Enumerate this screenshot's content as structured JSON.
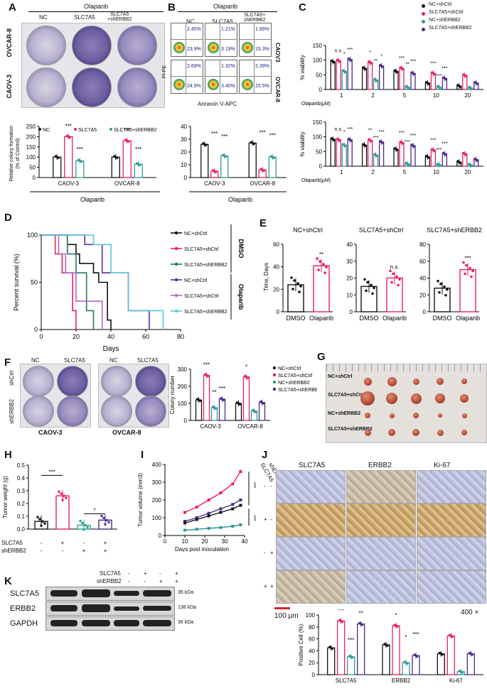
{
  "panels": {
    "A": "A",
    "B": "B",
    "C": "C",
    "D": "D",
    "E": "E",
    "F": "F",
    "G": "G",
    "H": "H",
    "I": "I",
    "J": "J",
    "K": "K"
  },
  "panelA": {
    "drug": "Olaparib",
    "cols": [
      "NC",
      "SLC7A5",
      "SLC7A5\n+shERBB2"
    ],
    "rows": [
      "OVCAR-8",
      "CAOV-3"
    ],
    "chart_data": {
      "type": "bar",
      "title": "",
      "ylabel": "Relative colony formation\n(% of Control)",
      "ylim": [
        0,
        250
      ],
      "yticks": [
        "0",
        "50",
        "100",
        "150",
        "200",
        "250"
      ],
      "categories": [
        "CAOV-3",
        "OVCAR-8"
      ],
      "xlabel": "Olaparib",
      "series": [
        {
          "name": "NC",
          "values": [
            100,
            100
          ]
        },
        {
          "name": "SLC7A5",
          "values": [
            200,
            180
          ]
        },
        {
          "name": "SLC7A5+shERBB2",
          "values": [
            82,
            65
          ]
        }
      ],
      "sig": [
        "***",
        "***",
        "***",
        "***"
      ]
    }
  },
  "panelB": {
    "drug": "Olaparib",
    "cols": [
      "NC",
      "SLC7A5",
      "SLC7A5+\nshERBB2"
    ],
    "rows": [
      "CAOV3",
      "OVCAR-8"
    ],
    "ylabel": "PI-PE",
    "xlabel": "Annexin V-APC",
    "quads": [
      [
        "2.45%",
        "23.9%"
      ],
      [
        "1.21%",
        "3.19%"
      ],
      [
        "1.89%",
        "15.3%"
      ],
      [
        "2.69%",
        "24.9%"
      ],
      [
        "1.32%",
        "3.40%"
      ],
      [
        "2.39%",
        "15.5%"
      ]
    ],
    "chart_data": {
      "type": "bar",
      "ylim": [
        0,
        40
      ],
      "yticks": [
        "0",
        "10",
        "20",
        "30",
        "40"
      ],
      "categories": [
        "CAOV-3",
        "OVCAR-8"
      ],
      "xlabel": "Olaparib",
      "series": [
        {
          "name": "NC",
          "values": [
            26,
            27
          ]
        },
        {
          "name": "SLC7A5",
          "values": [
            5,
            6
          ]
        },
        {
          "name": "SLC7A5+shERBB2",
          "values": [
            17,
            16
          ]
        }
      ],
      "sig": [
        "***",
        "***",
        "***",
        "***"
      ]
    }
  },
  "panelC": {
    "legend": [
      "NC+shCtrl",
      "SLC7A5+shCtrl",
      "NC+shERBB2",
      "SLC7A5+shERBB2"
    ],
    "colors": [
      "#111111",
      "#e91e63",
      "#2e9c94",
      "#4a2a8c"
    ],
    "chart_data": [
      {
        "type": "bar",
        "ylabel": "% viability",
        "xlabel": "Olaparib(μM)",
        "ylim": [
          0,
          150
        ],
        "yticks": [
          "0",
          "50",
          "100",
          "150"
        ],
        "categories": [
          "1",
          "2",
          "5",
          "10",
          "20"
        ],
        "series": [
          {
            "name": "NC+shCtrl",
            "values": [
              95,
              72,
              62,
              22,
              12
            ]
          },
          {
            "name": "SLC7A5+shCtrl",
            "values": [
              98,
              92,
              72,
              55,
              48
            ]
          },
          {
            "name": "NC+shERBB2",
            "values": [
              62,
              32,
              8,
              8,
              5
            ]
          },
          {
            "name": "SLC7A5+shERBB2",
            "values": [
              102,
              80,
              55,
              38,
              22
            ]
          }
        ],
        "sig": [
          "n.s.",
          "*",
          "***",
          "*",
          "**",
          "*",
          "***",
          "**",
          "***",
          "***",
          "***",
          "***"
        ]
      },
      {
        "type": "bar",
        "ylabel": "% viability",
        "xlabel": "Olaparib(μM)",
        "ylim": [
          0,
          150
        ],
        "yticks": [
          "0",
          "50",
          "100",
          "150"
        ],
        "categories": [
          "1",
          "2",
          "5",
          "10",
          "20"
        ],
        "series": [
          {
            "name": "NC+shCtrl",
            "values": [
              92,
              72,
              58,
              32,
              14
            ]
          },
          {
            "name": "SLC7A5+shCtrl",
            "values": [
              90,
              88,
              80,
              55,
              42
            ]
          },
          {
            "name": "NC+shERBB2",
            "values": [
              72,
              38,
              8,
              5,
              4
            ]
          },
          {
            "name": "SLC7A5+shERBB2",
            "values": [
              90,
              82,
              70,
              42,
              22
            ]
          }
        ],
        "sig": [
          "n.s.",
          "*",
          "***",
          "**",
          "***",
          "***",
          "***",
          "***",
          "***",
          "***",
          "***",
          "***"
        ]
      }
    ]
  },
  "panelD": {
    "chart_data": {
      "type": "line",
      "ylabel": "Percent survival (%)",
      "xlabel": "Days",
      "xlim": [
        0,
        80
      ],
      "ylim": [
        0,
        100
      ],
      "xticks": [
        "0",
        "20",
        "40",
        "60",
        "80"
      ],
      "yticks": [
        "0",
        "50",
        "100"
      ],
      "series": [
        {
          "name": "NC+shCtrl",
          "group": "DMSO",
          "color": "#111111",
          "x": [
            0,
            15,
            20,
            22,
            30,
            33,
            38,
            40
          ],
          "y": [
            100,
            90,
            80,
            70,
            60,
            50,
            10,
            0
          ]
        },
        {
          "name": "SLC7A5+shCtrl",
          "group": "DMSO",
          "color": "#e91e63",
          "x": [
            0,
            8,
            12,
            18,
            20
          ],
          "y": [
            100,
            80,
            60,
            20,
            0
          ]
        },
        {
          "name": "SLC7A5+shERBB2",
          "group": "DMSO",
          "color": "#1e7a6a",
          "x": [
            0,
            15,
            20,
            26,
            30
          ],
          "y": [
            100,
            80,
            60,
            20,
            0
          ]
        },
        {
          "name": "NC+shCtrl",
          "group": "Olaparib",
          "color": "#5a2ea6",
          "x": [
            0,
            25,
            35,
            50,
            62
          ],
          "y": [
            100,
            90,
            60,
            20,
            0
          ]
        },
        {
          "name": "SLC7A5+shCtrl",
          "group": "Olaparib",
          "color": "#b565c8",
          "x": [
            0,
            10,
            14,
            20,
            35
          ],
          "y": [
            100,
            80,
            60,
            30,
            0
          ]
        },
        {
          "name": "SLC7A5+shERBB2",
          "group": "Olaparib",
          "color": "#5ec5d8",
          "x": [
            0,
            30,
            40,
            50,
            70
          ],
          "y": [
            100,
            90,
            60,
            20,
            0
          ]
        }
      ]
    },
    "groups": [
      "DMSO",
      "Olaparib"
    ]
  },
  "panelE": {
    "ylabel": "Time, Days",
    "chart_data": [
      {
        "type": "bar",
        "title": "NC+shCtrl",
        "categories": [
          "DMSO",
          "Olaparib"
        ],
        "values": [
          24,
          41
        ],
        "ylim": [
          0,
          60
        ],
        "yticks": [
          "0",
          "20",
          "40",
          "60"
        ],
        "sig": "**"
      },
      {
        "type": "bar",
        "title": "SLC7A5+shCtrl",
        "categories": [
          "DMSO",
          "Olaparib"
        ],
        "values": [
          15,
          20
        ],
        "ylim": [
          0,
          40
        ],
        "yticks": [
          "0",
          "10",
          "20",
          "30",
          "40"
        ],
        "sig": "n.s."
      },
      {
        "type": "bar",
        "title": "SLC7A5+shERBB2",
        "categories": [
          "DMSO",
          "Olaparib"
        ],
        "values": [
          28,
          50
        ],
        "ylim": [
          0,
          80
        ],
        "yticks": [
          "0",
          "20",
          "40",
          "60",
          "80"
        ],
        "sig": "***"
      }
    ]
  },
  "panelF": {
    "cols": [
      "NC",
      "SLC7A5",
      "NC",
      "SLC7A5"
    ],
    "rows": [
      "shCtrl",
      "shERBB2"
    ],
    "cells": [
      "CAOV-3",
      "OVCAR-8"
    ],
    "chart_data": {
      "type": "bar",
      "ylabel": "Colony number",
      "ylim": [
        0,
        300
      ],
      "yticks": [
        "0",
        "100",
        "200",
        "300"
      ],
      "categories": [
        "CAOV-3",
        "OVCAR-8"
      ],
      "series": [
        {
          "name": "NC+shCtrl",
          "values": [
            120,
            100
          ]
        },
        {
          "name": "SLC7A5+shCtrl",
          "values": [
            265,
            255
          ]
        },
        {
          "name": "NC+shERBB2",
          "values": [
            75,
            55
          ]
        },
        {
          "name": "SLC7A5+shERBB2",
          "values": [
            125,
            105
          ]
        }
      ],
      "sig": [
        "***",
        "**",
        "***",
        "*"
      ]
    }
  },
  "panelG": {
    "rows": [
      "NC+shCtrl",
      "SLC7A5+shCtrl",
      "NC+shERBB2",
      "SLC7A5+shERBB2"
    ]
  },
  "panelH": {
    "chart_data": {
      "type": "bar",
      "ylabel": "Tumor weight (g)",
      "ylim": [
        0,
        0.5
      ],
      "yticks": [
        "0.0",
        "0.1",
        "0.2",
        "0.3",
        "0.4",
        "0.5"
      ],
      "categories": [
        "1",
        "2",
        "3",
        "4"
      ],
      "values": [
        0.06,
        0.26,
        0.03,
        0.07
      ],
      "sig": [
        "***",
        "*"
      ]
    },
    "rowlabels": [
      "SLC7A5",
      "shERBB2"
    ],
    "signs": [
      [
        "-",
        "+",
        "-",
        "+"
      ],
      [
        "-",
        "-",
        "+",
        "+"
      ]
    ]
  },
  "panelI": {
    "chart_data": {
      "type": "line",
      "ylabel": "Tumor volume (mm3)",
      "xlabel": "Days post inoculation",
      "xlim": [
        0,
        40
      ],
      "ylim": [
        0,
        400
      ],
      "xticks": [
        "0",
        "10",
        "20",
        "30",
        "40"
      ],
      "yticks": [
        "0",
        "100",
        "200",
        "300",
        "400"
      ],
      "x": [
        10,
        16,
        22,
        28,
        34,
        38
      ],
      "series": [
        {
          "name": "SLC7A5+shCtrl",
          "color": "#e91e63",
          "values": [
            130,
            160,
            200,
            240,
            290,
            360
          ]
        },
        {
          "name": "SLC7A5+shERBB2",
          "color": "#4a2a8c",
          "values": [
            80,
            100,
            125,
            150,
            175,
            200
          ]
        },
        {
          "name": "NC+shCtrl",
          "color": "#111111",
          "values": [
            70,
            90,
            110,
            130,
            150,
            170
          ]
        },
        {
          "name": "NC+shERBB2",
          "color": "#2e9c94",
          "values": [
            30,
            35,
            40,
            45,
            52,
            60
          ]
        }
      ],
      "sig": [
        "***",
        "***"
      ]
    }
  },
  "panelJ": {
    "rowheads": [
      "SLC7A5",
      "shERBB2"
    ],
    "cols": [
      "SLC7A5",
      "ERBB2",
      "Ki-67"
    ],
    "signs": [
      [
        "-",
        "-"
      ],
      [
        "+",
        "-"
      ],
      [
        "-",
        "+"
      ],
      [
        "+",
        "+"
      ]
    ],
    "scale": "100 μm",
    "mag": "400 ×",
    "chart_data": {
      "type": "bar",
      "ylabel": "Positive Cell (%)",
      "ylim": [
        0,
        100
      ],
      "yticks": [
        "0",
        "20",
        "40",
        "60",
        "80",
        "100"
      ],
      "categories": [
        "SLC7A5",
        "ERBB2",
        "Ki-67"
      ],
      "series": [
        {
          "name": "NC+shCtrl",
          "values": [
            45,
            50,
            35
          ]
        },
        {
          "name": "SLC7A5+shCtrl",
          "values": [
            90,
            82,
            65
          ]
        },
        {
          "name": "NC+shERBB2",
          "values": [
            30,
            20,
            5
          ]
        },
        {
          "name": "SLC7A5+shERBB2",
          "values": [
            85,
            32,
            35
          ]
        }
      ],
      "sig": [
        "***",
        "***",
        "**",
        "*",
        "*",
        "***"
      ]
    }
  },
  "panelK": {
    "rowheads": [
      "SLC7A5",
      "shERBB2"
    ],
    "signs": [
      [
        "-",
        "+",
        "-",
        "+"
      ],
      [
        "-",
        "-",
        "+",
        "+"
      ]
    ],
    "proteins": [
      "SLC7A5",
      "ERBB2",
      "GAPDH"
    ],
    "kda": [
      "35 kDa",
      "138 kDa",
      "36 kDa"
    ]
  }
}
